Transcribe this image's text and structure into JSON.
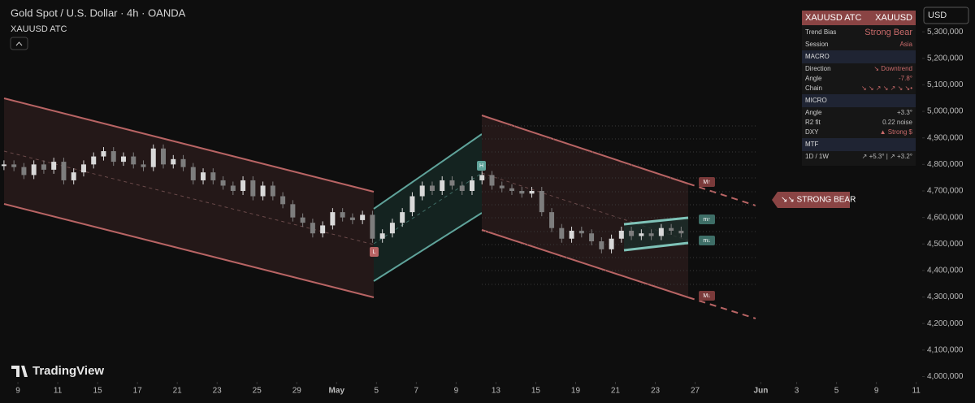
{
  "chart_data": {
    "type": "candlestick",
    "title": "Gold Spot / U.S. Dollar · 4h · OANDA",
    "subtitle": "XAUUSD ATC",
    "currency": "USD",
    "brand": "TradingView",
    "up_color": "#d9d9d9",
    "down_color": "#7d7d7d",
    "x": [
      -0.7,
      -0.2,
      0.3,
      0.8,
      1.3,
      1.8,
      2.3,
      2.8,
      3.3,
      3.8,
      4.3,
      4.8,
      5.3,
      5.8,
      6.3,
      6.8,
      7.3,
      7.8,
      8.3,
      8.8,
      9.3,
      9.8,
      10.3,
      10.8,
      11.3,
      11.8,
      12.3,
      12.8,
      13.3,
      13.8,
      14.3,
      14.8,
      15.3,
      15.8,
      16.3,
      16.8,
      17.3,
      17.8,
      18.3,
      18.8,
      19.3,
      19.8,
      20.3,
      20.8,
      21.3,
      21.8,
      22.3,
      22.8,
      23.3,
      23.8,
      24.3,
      24.8,
      25.3,
      25.8,
      26.3,
      26.8,
      27.3,
      27.8,
      28.3,
      28.8,
      29.3,
      29.8,
      30.3,
      30.8,
      31.3,
      31.8,
      32.3,
      32.8,
      33.3
    ],
    "series": [
      {
        "name": "XAUUSD",
        "values": [
          4800000,
          4790000,
          4760000,
          4800000,
          4780000,
          4810000,
          4740000,
          4770000,
          4800000,
          4830000,
          4850000,
          4810000,
          4830000,
          4800000,
          4790000,
          4860000,
          4800000,
          4820000,
          4790000,
          4740000,
          4770000,
          4740000,
          4720000,
          4700000,
          4740000,
          4680000,
          4720000,
          4680000,
          4650000,
          4600000,
          4580000,
          4540000,
          4570000,
          4620000,
          4600000,
          4590000,
          4610000,
          4520000,
          4540000,
          4580000,
          4620000,
          4680000,
          4720000,
          4700000,
          4740000,
          4720000,
          4700000,
          4740000,
          4760000,
          4720000,
          4710000,
          4700000,
          4690000,
          4700000,
          4620000,
          4560000,
          4520000,
          4550000,
          4540000,
          4510000,
          4480000,
          4520000,
          4550000,
          4530000,
          4540000,
          4530000,
          4560000,
          4550000,
          4540000
        ]
      }
    ],
    "xlim": [
      -0.9,
      45.4
    ],
    "xticks": [
      {
        "value": 0,
        "label": "9"
      },
      {
        "value": 2,
        "label": "11"
      },
      {
        "value": 4,
        "label": "15"
      },
      {
        "value": 6,
        "label": "17"
      },
      {
        "value": 8,
        "label": "21"
      },
      {
        "value": 10,
        "label": "23"
      },
      {
        "value": 12,
        "label": "25"
      },
      {
        "value": 14,
        "label": "29"
      },
      {
        "value": 16,
        "label": "May"
      },
      {
        "value": 18,
        "label": "5"
      },
      {
        "value": 20,
        "label": "7"
      },
      {
        "value": 22,
        "label": "9"
      },
      {
        "value": 24,
        "label": "13"
      },
      {
        "value": 26,
        "label": "15"
      },
      {
        "value": 28,
        "label": "19"
      },
      {
        "value": 30,
        "label": "21"
      },
      {
        "value": 32,
        "label": "23"
      },
      {
        "value": 34,
        "label": "27"
      },
      {
        "value": 37.3,
        "label": "Jun"
      },
      {
        "value": 39.1,
        "label": "3"
      },
      {
        "value": 41.1,
        "label": "5"
      },
      {
        "value": 43.1,
        "label": "9"
      },
      {
        "value": 45.1,
        "label": "11"
      }
    ],
    "ylim": [
      3980000,
      5420000
    ],
    "yticks": [
      {
        "value": 5300000,
        "label": "5,300,000"
      },
      {
        "value": 5200000,
        "label": "5,200,000"
      },
      {
        "value": 5100000,
        "label": "5,100,000"
      },
      {
        "value": 5000000,
        "label": "5,000,000"
      },
      {
        "value": 4900000,
        "label": "4,900,000"
      },
      {
        "value": 4800000,
        "label": "4,800,000"
      },
      {
        "value": 4700000,
        "label": "4,700,000"
      },
      {
        "value": 4600000,
        "label": "4,600,000"
      },
      {
        "value": 4500000,
        "label": "4,500,000"
      },
      {
        "value": 4400000,
        "label": "4,400,000"
      },
      {
        "value": 4300000,
        "label": "4,300,000"
      },
      {
        "value": 4200000,
        "label": "4,200,000"
      },
      {
        "value": 4100000,
        "label": "4,100,000"
      },
      {
        "value": 4000000,
        "label": "4,000,000"
      }
    ],
    "annotations": [
      "H",
      "L",
      "M↑",
      "m↑",
      "m↓",
      "M↓",
      "↘↘ STRONG BEAR"
    ],
    "panel": {
      "header": [
        "XAUUSD ATC",
        "XAUUSD"
      ],
      "rows": [
        [
          "Trend Bias",
          "Strong Bear"
        ],
        [
          "Session",
          "Asia"
        ],
        [
          "MACRO"
        ],
        [
          "Direction",
          "↘ Downtrend"
        ],
        [
          "Angle",
          "-7.8°"
        ],
        [
          "Chain",
          "↘ ↘ ↗ ↘ ↗ ↘ ↘•"
        ],
        [
          "MICRO"
        ],
        [
          "Angle",
          "+3.3°"
        ],
        [
          "R2 fit",
          "0.22 noise"
        ],
        [
          "DXY",
          "▲ Strong $"
        ],
        [
          "MTF"
        ],
        [
          "1D / 1W",
          "↗ +5.3° | ↗ +3.2°"
        ]
      ]
    }
  }
}
